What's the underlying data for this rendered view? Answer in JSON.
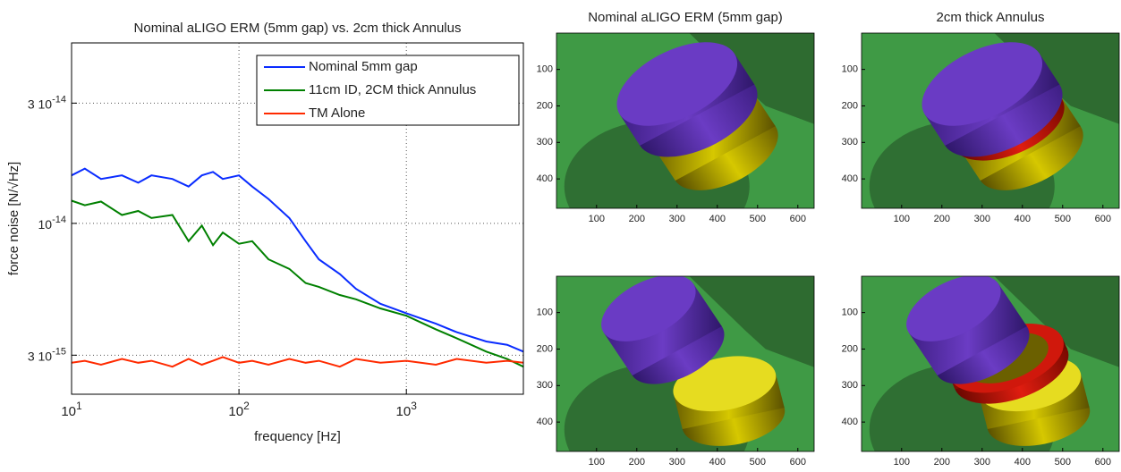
{
  "chart_data": [
    {
      "type": "line",
      "title": "Nominal aLIGO ERM (5mm gap) vs. 2cm thick Annulus",
      "xlabel": "frequency [Hz]",
      "ylabel": "force noise [N/√Hz]",
      "xscale": "log",
      "yscale": "log",
      "grid": true,
      "legend": "upper right",
      "xlim": [
        10,
        5000
      ],
      "ylim": [
        2.1e-15,
        5.2e-14
      ],
      "xticks": [
        {
          "value": 10,
          "label": "10",
          "exponent": "1"
        },
        {
          "value": 100,
          "label": "10",
          "exponent": "2"
        },
        {
          "value": 1000,
          "label": "10",
          "exponent": "3"
        }
      ],
      "yticks": [
        {
          "value": 3e-15,
          "label": "3 10",
          "exponent": "-15"
        },
        {
          "value": 1e-14,
          "label": "10",
          "exponent": "-14"
        },
        {
          "value": 3e-14,
          "label": "3 10",
          "exponent": "-14"
        }
      ],
      "x": [
        10,
        12,
        15,
        20,
        25,
        30,
        40,
        50,
        60,
        70,
        80,
        100,
        120,
        150,
        200,
        250,
        300,
        400,
        500,
        700,
        1000,
        1500,
        2000,
        3000,
        4000,
        5000
      ],
      "series": [
        {
          "name": "Nominal 5mm gap",
          "color": "#0a2cff",
          "values": [
            1.55e-14,
            1.65e-14,
            1.5e-14,
            1.55e-14,
            1.45e-14,
            1.55e-14,
            1.5e-14,
            1.4e-14,
            1.55e-14,
            1.6e-14,
            1.5e-14,
            1.55e-14,
            1.4e-14,
            1.25e-14,
            1.05e-14,
            8.5e-15,
            7.2e-15,
            6.3e-15,
            5.5e-15,
            4.8e-15,
            4.4e-15,
            4e-15,
            3.7e-15,
            3.4e-15,
            3.3e-15,
            3.1e-15
          ]
        },
        {
          "name": "11cm ID, 2CM thick Annulus",
          "color": "#008000",
          "values": [
            1.23e-14,
            1.18e-14,
            1.22e-14,
            1.08e-14,
            1.12e-14,
            1.05e-14,
            1.08e-14,
            8.5e-15,
            9.8e-15,
            8.2e-15,
            9.2e-15,
            8.3e-15,
            8.5e-15,
            7.2e-15,
            6.6e-15,
            5.8e-15,
            5.6e-15,
            5.2e-15,
            5e-15,
            4.6e-15,
            4.3e-15,
            3.8e-15,
            3.5e-15,
            3.1e-15,
            2.9e-15,
            2.7e-15
          ]
        },
        {
          "name": "TM Alone",
          "color": "#ff2a00",
          "values": [
            2.8e-15,
            2.85e-15,
            2.75e-15,
            2.9e-15,
            2.8e-15,
            2.85e-15,
            2.7e-15,
            2.9e-15,
            2.75e-15,
            2.85e-15,
            2.95e-15,
            2.8e-15,
            2.85e-15,
            2.75e-15,
            2.9e-15,
            2.8e-15,
            2.85e-15,
            2.7e-15,
            2.9e-15,
            2.8e-15,
            2.85e-15,
            2.75e-15,
            2.9e-15,
            2.8e-15,
            2.85e-15,
            2.8e-15
          ]
        }
      ]
    },
    {
      "type": "image",
      "title": "Nominal aLIGO ERM (5mm gap)",
      "xlim": [
        0.5,
        640.5
      ],
      "ylim": [
        0.5,
        480.5
      ],
      "y_reversed": true,
      "xticks": [
        100,
        200,
        300,
        400,
        500,
        600
      ],
      "yticks": [
        100,
        200,
        300,
        400
      ]
    },
    {
      "type": "image",
      "title": "2cm thick Annulus",
      "xlim": [
        0.5,
        640.5
      ],
      "ylim": [
        0.5,
        480.5
      ],
      "y_reversed": true,
      "xticks": [
        100,
        200,
        300,
        400,
        500,
        600
      ],
      "yticks": [
        100,
        200,
        300,
        400
      ]
    },
    {
      "type": "image",
      "xlim": [
        0.5,
        640.5
      ],
      "ylim": [
        0.5,
        480.5
      ],
      "y_reversed": true,
      "xticks": [
        100,
        200,
        300,
        400,
        500,
        600
      ],
      "yticks": [
        100,
        200,
        300,
        400
      ]
    },
    {
      "type": "image",
      "xlim": [
        0.5,
        640.5
      ],
      "ylim": [
        0.5,
        480.5
      ],
      "y_reversed": true,
      "xticks": [
        100,
        200,
        300,
        400,
        500,
        600
      ],
      "yticks": [
        100,
        200,
        300,
        400
      ]
    }
  ]
}
